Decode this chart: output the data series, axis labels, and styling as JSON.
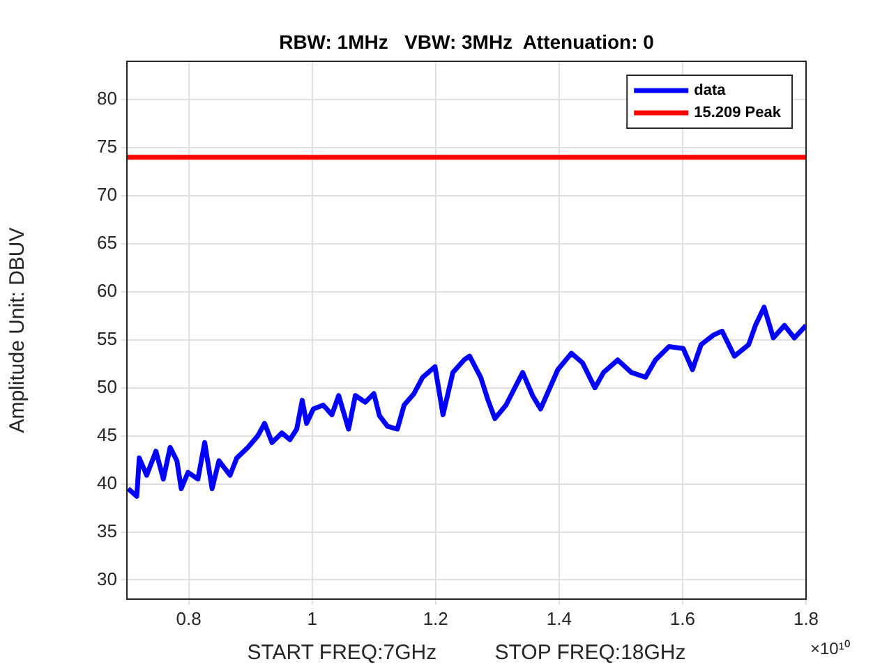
{
  "chart_data": {
    "type": "line",
    "title": "RBW: 1MHz   VBW: 3MHz  Attenuation: 0",
    "xlabel": "START FREQ:7GHz          STOP FREQ:18GHz",
    "ylabel": "Amplitude Unit: DBUV",
    "annotations": [
      "×10¹⁰"
    ],
    "xlim": [
      0.7,
      1.8
    ],
    "xticks": [
      0.8,
      1,
      1.2,
      1.4,
      1.6,
      1.8
    ],
    "ylim": [
      28,
      84
    ],
    "yticks": [
      30,
      35,
      40,
      45,
      50,
      55,
      60,
      65,
      70,
      75,
      80
    ],
    "grid": true,
    "legend": "top right",
    "marker": "none",
    "line_style": "solid",
    "series": [
      {
        "name": "data",
        "color": "#0000ff",
        "x": [
          0.702,
          0.716,
          0.72,
          0.732,
          0.747,
          0.759,
          0.77,
          0.781,
          0.788,
          0.799,
          0.815,
          0.826,
          0.838,
          0.849,
          0.867,
          0.878,
          0.896,
          0.912,
          0.923,
          0.935,
          0.951,
          0.964,
          0.975,
          0.984,
          0.991,
          1.002,
          1.018,
          1.032,
          1.043,
          1.059,
          1.07,
          1.086,
          1.1,
          1.109,
          1.122,
          1.138,
          1.149,
          1.165,
          1.179,
          1.199,
          1.212,
          1.228,
          1.246,
          1.255,
          1.273,
          1.285,
          1.296,
          1.314,
          1.341,
          1.357,
          1.37,
          1.398,
          1.42,
          1.438,
          1.458,
          1.472,
          1.495,
          1.517,
          1.54,
          1.556,
          1.578,
          1.601,
          1.616,
          1.63,
          1.65,
          1.664,
          1.684,
          1.707,
          1.718,
          1.732,
          1.747,
          1.765,
          1.781,
          1.8
        ],
        "values": [
          39.5,
          38.7,
          42.7,
          40.9,
          43.4,
          40.5,
          43.8,
          42.4,
          39.5,
          41.2,
          40.5,
          44.3,
          39.5,
          42.4,
          40.9,
          42.7,
          43.8,
          45.0,
          46.3,
          44.3,
          45.3,
          44.6,
          45.7,
          48.7,
          46.3,
          47.8,
          48.2,
          47.2,
          49.2,
          45.7,
          49.2,
          48.5,
          49.4,
          47.1,
          46.0,
          45.7,
          48.2,
          49.4,
          51.1,
          52.2,
          47.2,
          51.6,
          52.9,
          53.3,
          51.1,
          48.7,
          46.8,
          48.2,
          51.6,
          49.2,
          47.8,
          51.9,
          53.6,
          52.6,
          50.0,
          51.6,
          52.9,
          51.6,
          51.1,
          52.9,
          54.3,
          54.1,
          51.9,
          54.5,
          55.5,
          55.9,
          53.3,
          54.5,
          56.5,
          58.4,
          55.2,
          56.5,
          55.2,
          56.5
        ]
      },
      {
        "name": "15.209 Peak",
        "color": "#ff0000",
        "x": [
          0.7,
          1.8
        ],
        "values": [
          74,
          74
        ]
      }
    ]
  }
}
